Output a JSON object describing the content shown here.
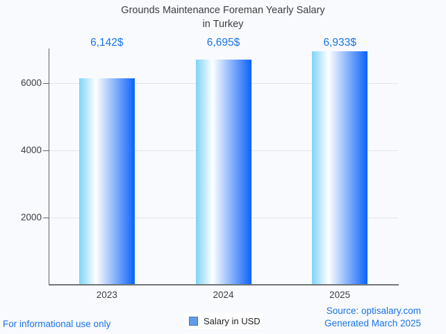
{
  "chart_data": {
    "type": "bar",
    "title": "Grounds Maintenance Foreman Yearly Salary in Turkey",
    "title_lines": [
      "Grounds Maintenance Foreman Yearly Salary",
      "in Turkey"
    ],
    "categories": [
      "2023",
      "2024",
      "2025"
    ],
    "series": [
      {
        "name": "Salary in USD",
        "values": [
          6142,
          6695,
          6933
        ]
      }
    ],
    "value_labels": [
      "6,142$",
      "6,695$",
      "6,933$"
    ],
    "xlabel": "",
    "ylabel": "",
    "y_ticks": [
      2000,
      4000,
      6000
    ],
    "ylim": [
      0,
      7020
    ],
    "grid": true,
    "legend_position": "bottom-center"
  },
  "legend": {
    "label": "Salary in USD"
  },
  "footer": {
    "disclaimer": "For informational use only",
    "source": "Source: optisalary.com",
    "generated": "Generated March 2025"
  },
  "colors": {
    "background": "#f8fafd",
    "accent_blue": "#1a73e8",
    "title_gray": "#3c4043",
    "axis_gray": "#5f6368",
    "baseline_gray": "#70757a",
    "gridline": "#e3e6ea",
    "bar_gradient": [
      "#7ed3f7",
      "#ffffff",
      "#0b63f8"
    ],
    "legend_marker_fill": "#5f9de8",
    "legend_marker_border": "#4174b8"
  }
}
